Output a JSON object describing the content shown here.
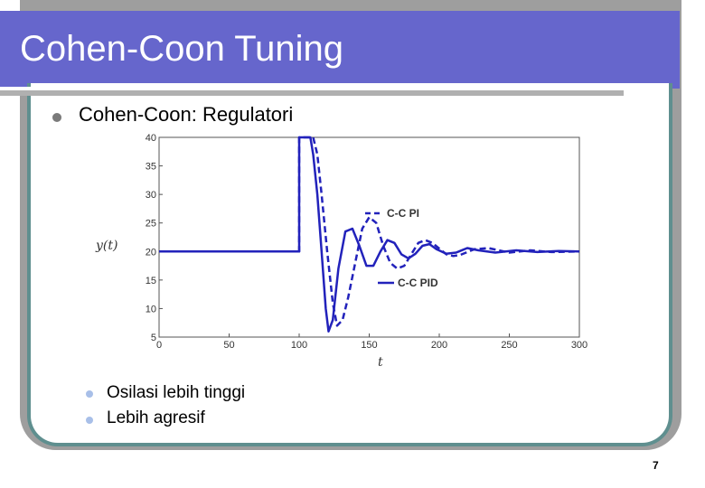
{
  "slide": {
    "title": "Cohen-Coon Tuning",
    "bullet_main": "Cohen-Coon: Regulatori",
    "sub_bullets": [
      "Osilasi lebih tinggi",
      "Lebih agresif"
    ],
    "page_number": "7"
  },
  "colors": {
    "title_bar": "#6666cc",
    "frame": "#5f8f8f",
    "series": "#2222bb"
  },
  "chart_data": {
    "type": "line",
    "xlabel": "t",
    "ylabel": "y(t)",
    "xlim": [
      0,
      300
    ],
    "ylim": [
      5,
      40
    ],
    "xticks": [
      0,
      50,
      100,
      150,
      200,
      250,
      300
    ],
    "yticks": [
      5,
      10,
      15,
      20,
      25,
      30,
      35,
      40
    ],
    "grid": false,
    "series": [
      {
        "name": "C-C PID",
        "style": "solid",
        "x": [
          0,
          100,
          100,
          108,
          110,
          113,
          116,
          119,
          121,
          124,
          128,
          133,
          138,
          143,
          148,
          153,
          158,
          163,
          168,
          173,
          178,
          183,
          188,
          193,
          198,
          205,
          212,
          220,
          228,
          240,
          255,
          270,
          285,
          300
        ],
        "y": [
          20,
          20,
          40,
          40,
          37,
          30,
          20,
          10,
          6,
          8,
          17,
          23.5,
          24,
          21,
          17.5,
          17.5,
          20,
          22,
          21.5,
          19.5,
          18.8,
          19.6,
          21,
          21.3,
          20.4,
          19.6,
          19.8,
          20.6,
          20.2,
          19.8,
          20.2,
          19.9,
          20.1,
          20
        ]
      },
      {
        "name": "C-C PI",
        "style": "dashed",
        "x": [
          0,
          100,
          100,
          110,
          113,
          116,
          120,
          124,
          127,
          131,
          135,
          140,
          145,
          150,
          155,
          160,
          165,
          170,
          175,
          180,
          185,
          190,
          195,
          200,
          205,
          210,
          215,
          225,
          235,
          250,
          265,
          280,
          300
        ],
        "y": [
          20,
          20,
          40,
          40,
          37,
          30,
          20,
          11,
          7,
          8,
          12,
          18,
          24,
          26,
          25,
          21,
          18,
          17,
          17.5,
          19.5,
          21.5,
          22,
          21.5,
          20.5,
          19.5,
          19.2,
          19.4,
          20.4,
          20.6,
          19.8,
          20.2,
          19.9,
          20
        ]
      }
    ]
  }
}
